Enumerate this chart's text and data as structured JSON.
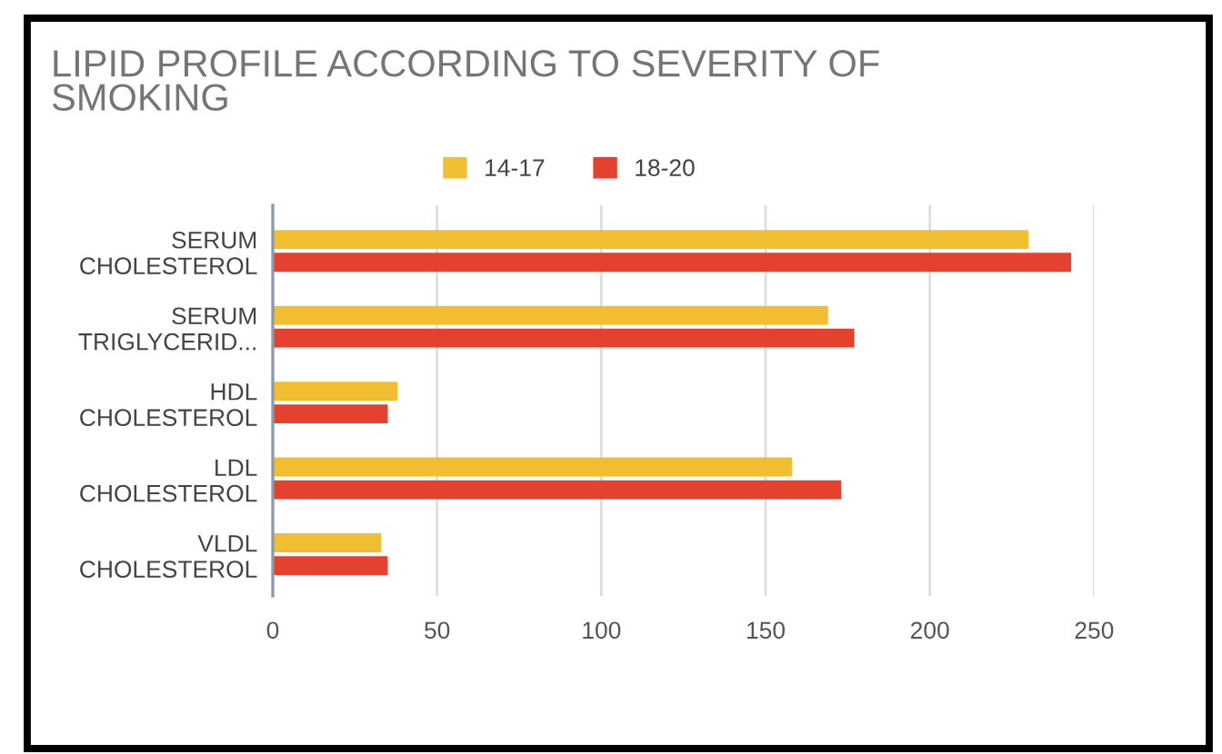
{
  "chart_data": {
    "type": "bar",
    "orientation": "horizontal",
    "title": "LIPID PROFILE ACCORDING TO SEVERITY OF SMOKING",
    "categories": [
      "SERUM CHOLESTEROL",
      "SERUM TRIGLYCERID...",
      "HDL CHOLESTEROL",
      "LDL CHOLESTEROL",
      "VLDL CHOLESTEROL"
    ],
    "series": [
      {
        "name": "14-17",
        "color": "#f1be32",
        "values": [
          230,
          169,
          38,
          158,
          33
        ]
      },
      {
        "name": "18-20",
        "color": "#e4412f",
        "values": [
          243,
          177,
          35,
          173,
          35
        ]
      }
    ],
    "xlim": [
      0,
      250
    ],
    "xticks": [
      0,
      50,
      100,
      150,
      200,
      250
    ],
    "grid": "x",
    "legend": "top"
  }
}
